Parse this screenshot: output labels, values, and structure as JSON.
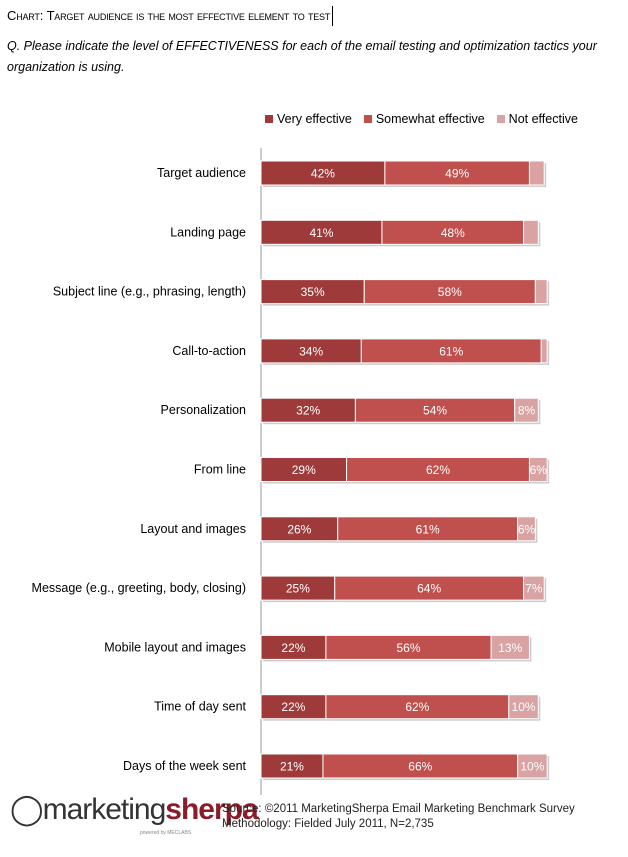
{
  "chart_data": {
    "type": "bar",
    "orientation": "horizontal-stacked",
    "title": "Chart: Target audience is the most effective element to test",
    "subtitle": "Q. Please indicate the level of EFFECTIVENESS for each of the email testing and optimization tactics your organization is using.",
    "categories": [
      "Target audience",
      "Landing page",
      "Subject line (e.g., phrasing, length)",
      "Call-to-action",
      "Personalization",
      "From line",
      "Layout and images",
      "Message (e.g., greeting, body, closing)",
      "Mobile layout and images",
      "Time of day sent",
      "Days of the week sent"
    ],
    "series": [
      {
        "name": "Very effective",
        "color": "#9e3a3a",
        "values": [
          42,
          41,
          35,
          34,
          32,
          29,
          26,
          25,
          22,
          22,
          21
        ],
        "labels": [
          "42%",
          "41%",
          "35%",
          "34%",
          "32%",
          "29%",
          "26%",
          "25%",
          "22%",
          "22%",
          "21%"
        ]
      },
      {
        "name": "Somewhat effective",
        "color": "#c0504d",
        "values": [
          49,
          48,
          58,
          61,
          54,
          62,
          61,
          64,
          56,
          62,
          66
        ],
        "labels": [
          "49%",
          "48%",
          "58%",
          "61%",
          "54%",
          "62%",
          "61%",
          "64%",
          "56%",
          "62%",
          "66%"
        ]
      },
      {
        "name": "Not effective",
        "color": "#d9a3a3",
        "values": [
          5,
          5,
          4,
          2,
          8,
          6,
          6,
          7,
          13,
          10,
          10
        ],
        "labels": [
          "",
          "",
          "",
          "",
          "8%",
          "6%",
          "6%",
          "7%",
          "13%",
          "10%",
          "10%"
        ]
      }
    ],
    "legend": "top-right",
    "grid": false
  },
  "header": {
    "title_prefix": "Chart:",
    "title_rest": "Target audience is the most effective element to test",
    "question": "Q. Please indicate the level of EFFECTIVENESS for each of the email testing and optimization tactics your organization is using."
  },
  "footer": {
    "source": "Source: ©2011 MarketingSherpa  Email Marketing Benchmark  Survey",
    "methodology": "Methodology: Fielded July 2011, N=2,735"
  },
  "logo": {
    "part1": "marketing",
    "part2": "sherpa",
    "tagline": "powered by MECLABS"
  }
}
